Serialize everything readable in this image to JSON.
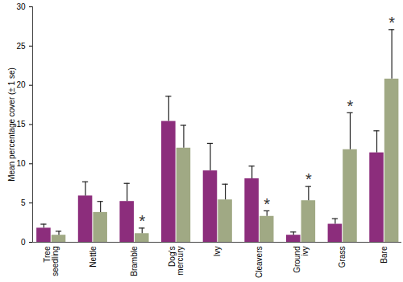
{
  "chart_data": {
    "type": "bar",
    "y_label": "Mean percentage cover (± 1 se)",
    "categories": [
      "Tree seedling",
      "Nettle",
      "Bramble",
      "Dog’s mercury",
      "Ivy",
      "Cleavers",
      "Ground ivy",
      "Grass",
      "Bare"
    ],
    "series": [
      {
        "color": "#8c2d7c",
        "values": [
          1.8,
          5.9,
          5.2,
          15.4,
          9.1,
          8.1,
          0.9,
          2.3,
          11.4
        ],
        "error": [
          0.5,
          1.8,
          2.3,
          3.2,
          3.5,
          1.6,
          0.4,
          0.7,
          2.8
        ]
      },
      {
        "color": "#a0a984",
        "values": [
          0.9,
          3.8,
          1.1,
          12.0,
          5.4,
          3.3,
          5.3,
          11.8,
          20.8
        ],
        "error": [
          0.5,
          1.4,
          0.7,
          2.9,
          2.0,
          0.7,
          1.8,
          4.7,
          6.3
        ]
      }
    ],
    "annotations": [
      {
        "category": "Bramble",
        "text": "*"
      },
      {
        "category": "Cleavers",
        "text": "*"
      },
      {
        "category": "Ground ivy",
        "text": "*"
      },
      {
        "category": "Grass",
        "text": "*"
      },
      {
        "category": "Bare",
        "text": "*"
      }
    ],
    "ylim": [
      0,
      30
    ],
    "yticks": [
      0,
      5,
      10,
      15,
      20,
      25,
      30
    ],
    "grid": false
  }
}
